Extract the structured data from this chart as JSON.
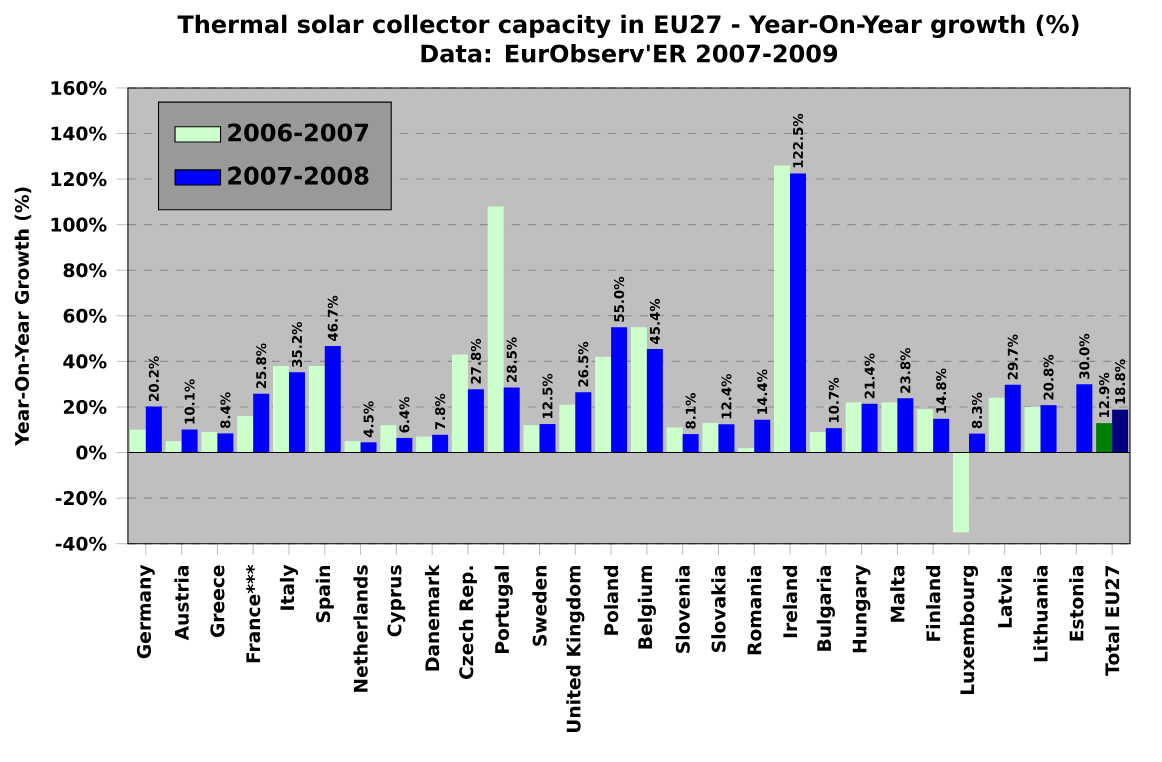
{
  "chart_data": {
    "type": "bar",
    "title": "Thermal solar collector capacity in EU27 - Year-On-Year growth (%)",
    "subtitle": "Data: EurObserv'ER 2007-2009",
    "ylabel": "Year-On-Year Growth (%)",
    "categories": [
      "Germany",
      "Austria",
      "Greece",
      "France***",
      "Italy",
      "Spain",
      "Netherlands",
      "Cyprus",
      "Danemark",
      "Czech Rep.",
      "Portugal",
      "Sweden",
      "United Kingdom",
      "Poland",
      "Belgium",
      "Slovenia",
      "Slovakia",
      "Romania",
      "Ireland",
      "Bulgaria",
      "Hungary",
      "Malta",
      "Finland",
      "Luxembourg",
      "Latvia",
      "Lithuania",
      "Estonia",
      "Total EU27"
    ],
    "series": [
      {
        "name": "2006-2007",
        "color": "#ccffcc",
        "colors": [
          "#ccffcc",
          "#ccffcc",
          "#ccffcc",
          "#ccffcc",
          "#ccffcc",
          "#ccffcc",
          "#ccffcc",
          "#ccffcc",
          "#ccffcc",
          "#ccffcc",
          "#ccffcc",
          "#ccffcc",
          "#ccffcc",
          "#ccffcc",
          "#ccffcc",
          "#ccffcc",
          "#ccffcc",
          "#ccffcc",
          "#ccffcc",
          "#ccffcc",
          "#ccffcc",
          "#ccffcc",
          "#ccffcc",
          "#ccffcc",
          "#ccffcc",
          "#ccffcc",
          "#ccffcc",
          "#008000"
        ],
        "values": [
          10,
          5,
          9,
          16,
          38,
          38,
          5,
          12,
          7,
          43,
          108,
          12,
          21,
          42,
          55,
          11,
          13,
          2,
          126,
          9,
          22,
          22,
          19,
          -35,
          24,
          20,
          null,
          12.9
        ],
        "value_labels": [
          null,
          null,
          null,
          null,
          null,
          null,
          null,
          null,
          null,
          null,
          null,
          null,
          null,
          null,
          null,
          null,
          null,
          null,
          null,
          null,
          null,
          null,
          null,
          null,
          null,
          null,
          null,
          "12.9%"
        ]
      },
      {
        "name": "2007-2008",
        "color": "#0000ff",
        "colors": [
          "#0000ff",
          "#0000ff",
          "#0000ff",
          "#0000ff",
          "#0000ff",
          "#0000ff",
          "#0000ff",
          "#0000ff",
          "#0000ff",
          "#0000ff",
          "#0000ff",
          "#0000ff",
          "#0000ff",
          "#0000ff",
          "#0000ff",
          "#0000ff",
          "#0000ff",
          "#0000ff",
          "#0000ff",
          "#0000ff",
          "#0000ff",
          "#0000ff",
          "#0000ff",
          "#0000ff",
          "#0000ff",
          "#0000ff",
          "#0000ff",
          "#000080"
        ],
        "values": [
          20.2,
          10.1,
          8.4,
          25.8,
          35.2,
          46.7,
          4.5,
          6.4,
          7.8,
          27.8,
          28.5,
          12.5,
          26.5,
          55.0,
          45.4,
          8.1,
          12.4,
          14.4,
          122.5,
          10.7,
          21.4,
          23.8,
          14.8,
          8.3,
          29.7,
          20.8,
          30.0,
          18.8
        ],
        "value_labels": [
          "20.2%",
          "10.1%",
          "8.4%",
          "25.8%",
          "35.2%",
          "46.7%",
          "4.5%",
          "6.4%",
          "7.8%",
          "27.8%",
          "28.5%",
          "12.5%",
          "26.5%",
          "55.0%",
          "45.4%",
          "8.1%",
          "12.4%",
          "14.4%",
          "122.5%",
          "10.7%",
          "21.4%",
          "23.8%",
          "14.8%",
          "8.3%",
          "29.7%",
          "20.8%",
          "30.0%",
          "18.8%"
        ]
      }
    ],
    "ylim": [
      -40,
      160
    ],
    "yticks": [
      {
        "value": -40,
        "label": "-40%"
      },
      {
        "value": -20,
        "label": "-20%"
      },
      {
        "value": 0,
        "label": "0%"
      },
      {
        "value": 20,
        "label": "20%"
      },
      {
        "value": 40,
        "label": "40%"
      },
      {
        "value": 60,
        "label": "60%"
      },
      {
        "value": 80,
        "label": "80%"
      },
      {
        "value": 100,
        "label": "100%"
      },
      {
        "value": 120,
        "label": "120%"
      },
      {
        "value": 140,
        "label": "140%"
      },
      {
        "value": 160,
        "label": "160%"
      }
    ],
    "grid": "y",
    "legend": "top left"
  }
}
